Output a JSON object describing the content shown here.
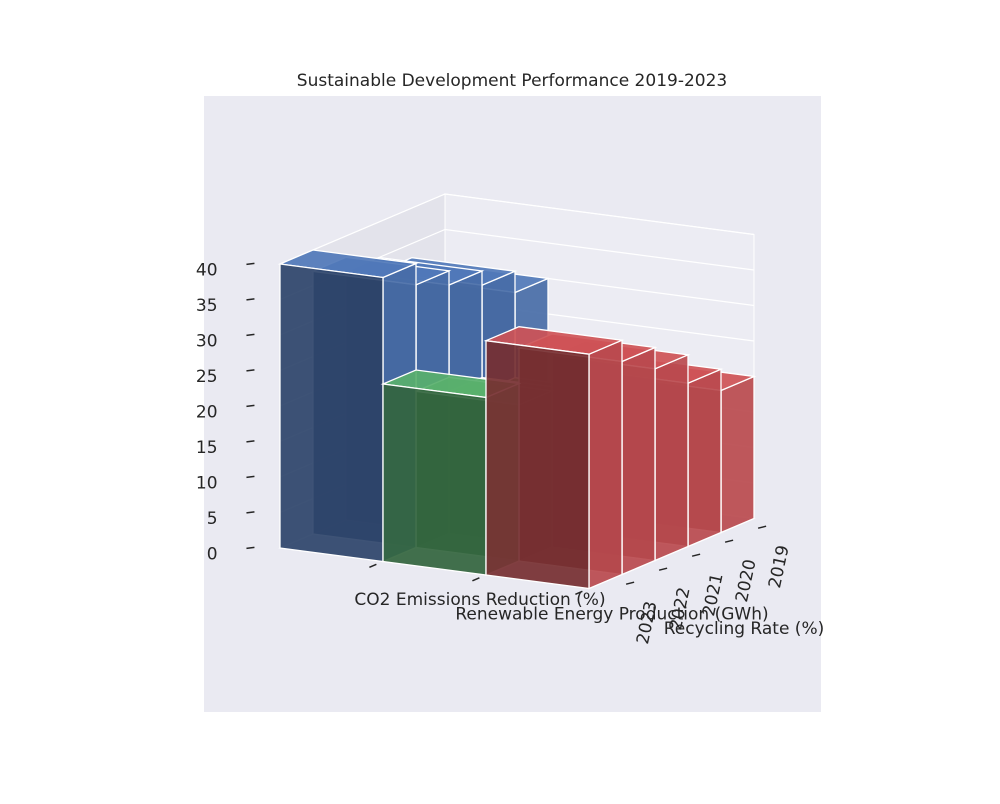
{
  "chart_data": {
    "type": "bar3d",
    "title": "Sustainable Development Performance 2019-2023",
    "categories": [
      "2019",
      "2020",
      "2021",
      "2022",
      "2023"
    ],
    "series": [
      {
        "name": "CO2 Emissions Reduction (%)",
        "color": "#4c72b0",
        "values": [
          30,
          33,
          35,
          37,
          40
        ]
      },
      {
        "name": "Renewable Energy Production (GWh)",
        "color": "#55a868",
        "values": [
          15,
          18,
          20,
          22,
          25
        ]
      },
      {
        "name": "Recycling Rate (%)",
        "color": "#c44e52",
        "values": [
          20,
          23,
          27,
          30,
          33
        ]
      }
    ],
    "zlim": [
      0,
      40
    ],
    "zticks": [
      0,
      5,
      10,
      15,
      20,
      25,
      30,
      35,
      40
    ],
    "grid": true
  }
}
